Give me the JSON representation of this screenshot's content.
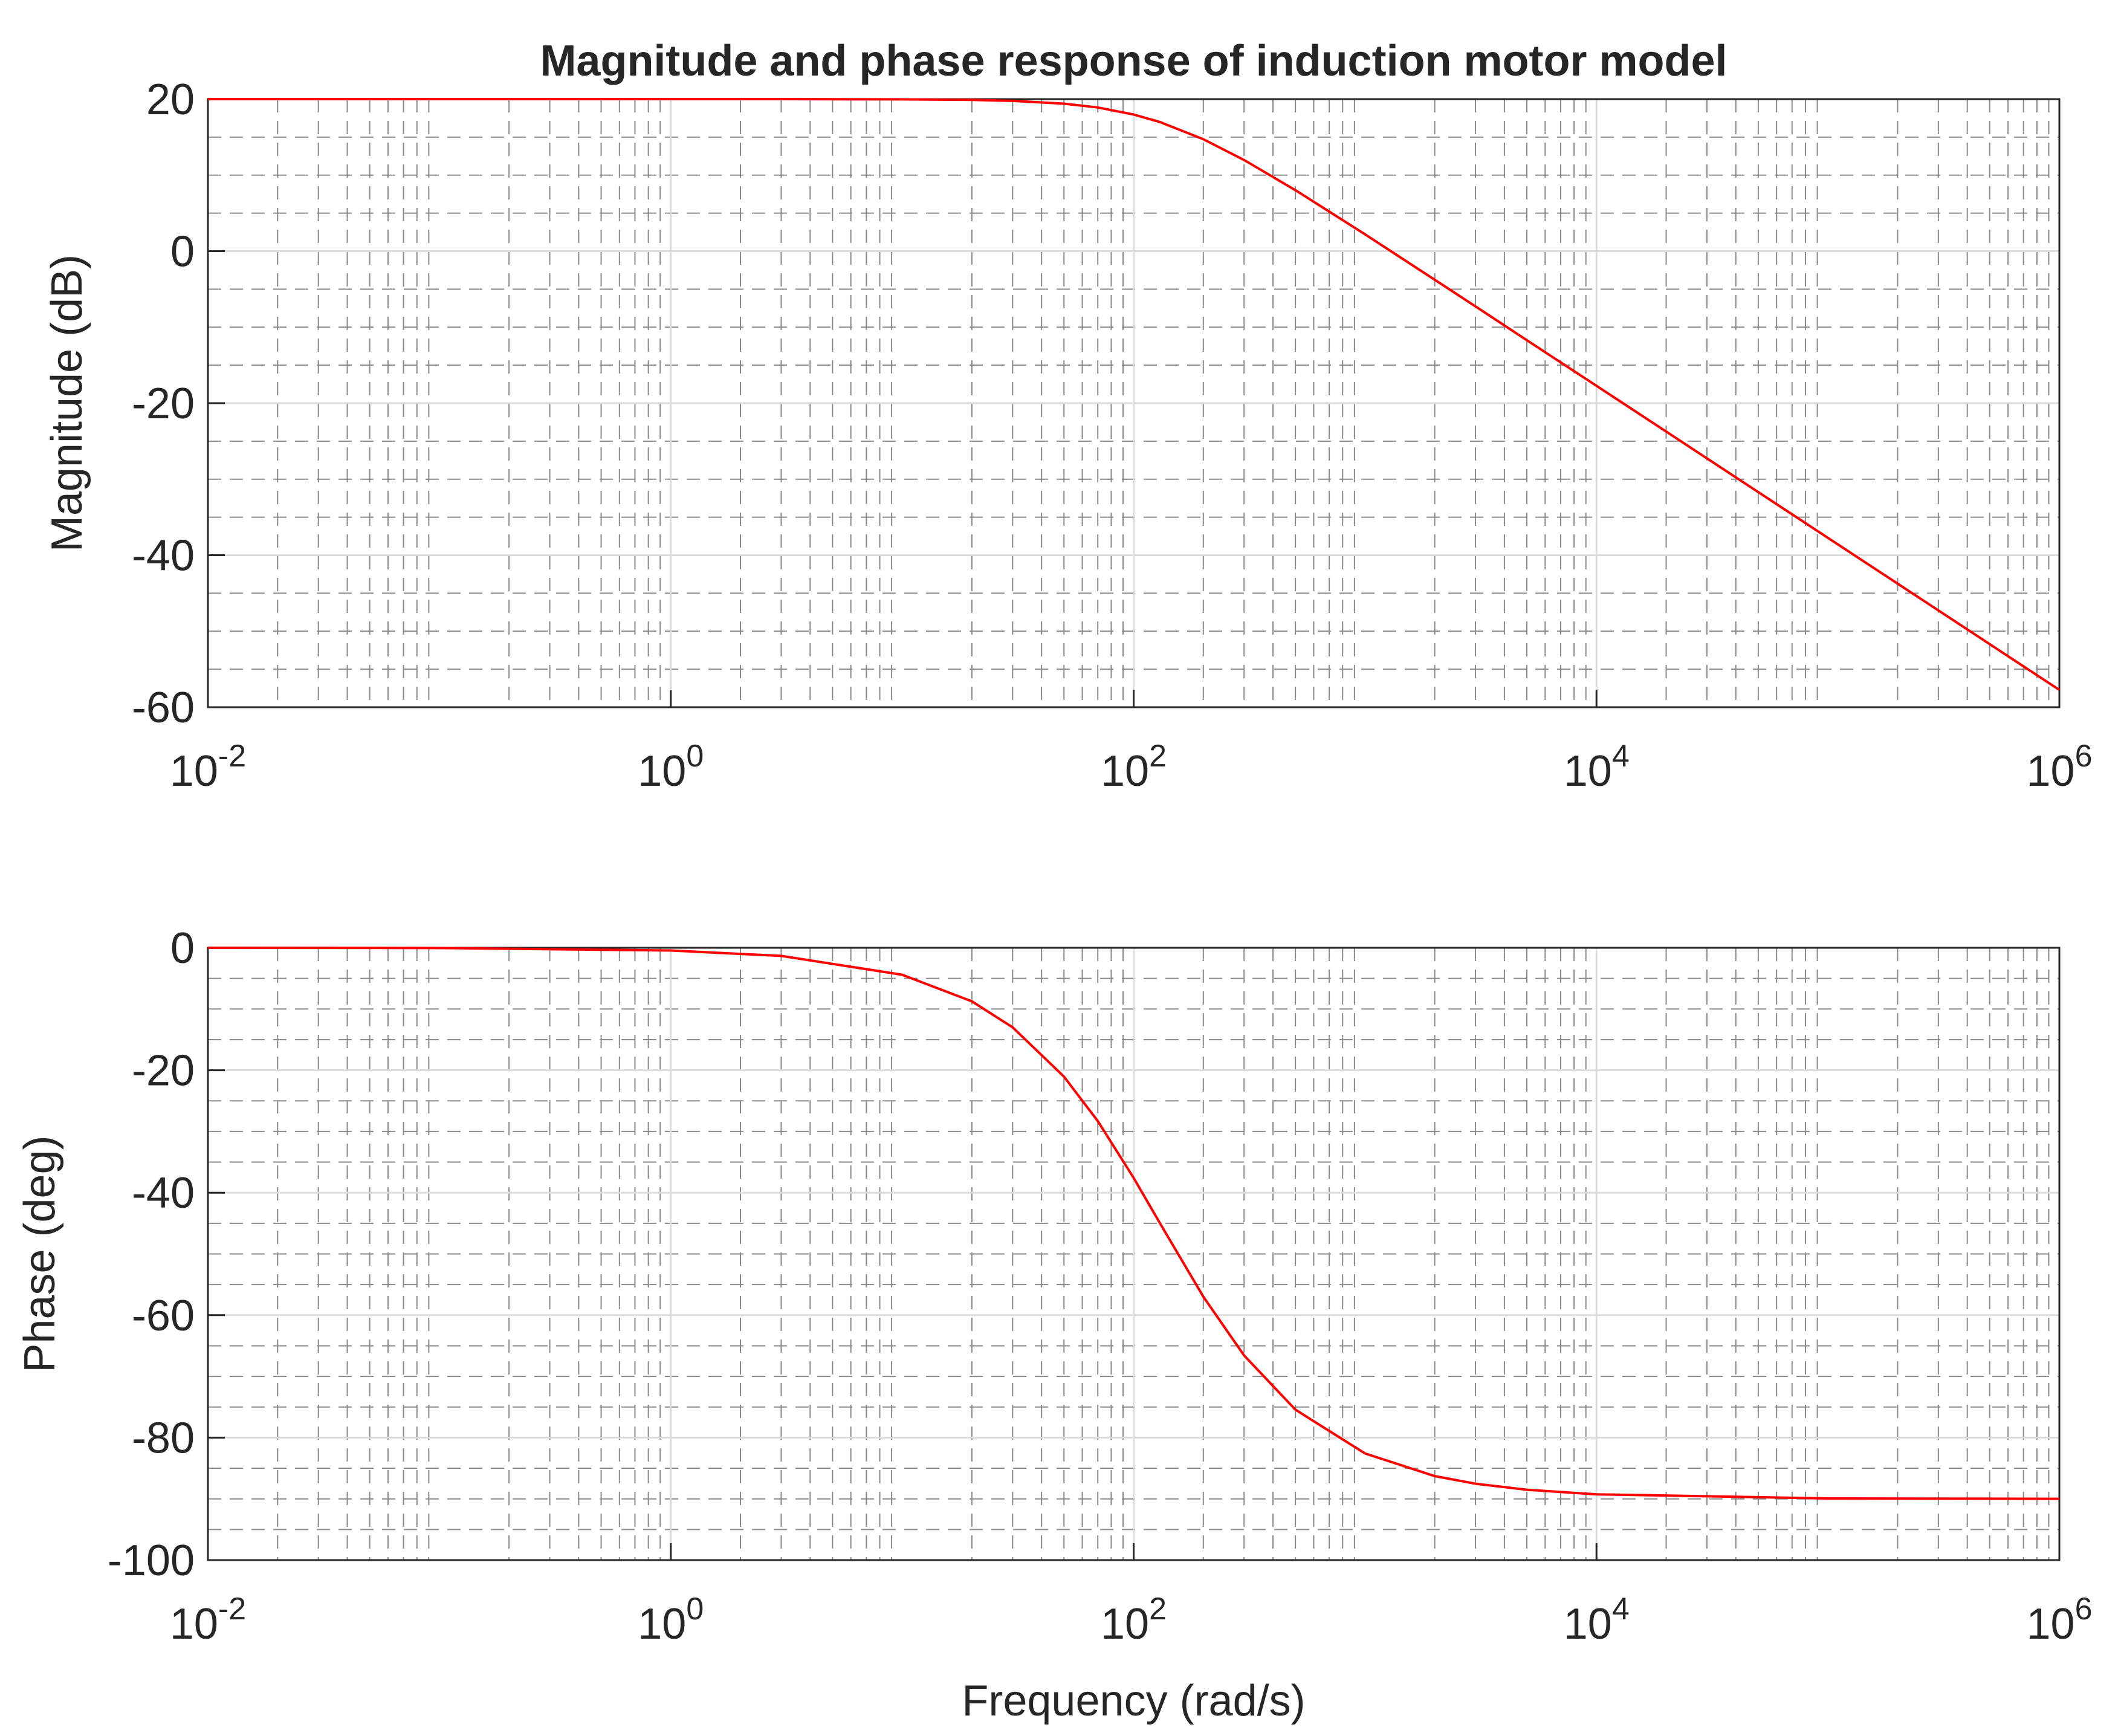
{
  "chart_data": [
    {
      "type": "line",
      "title": "Magnitude and phase response of induction motor model",
      "y_label": "Magnitude (dB)",
      "log_x": true,
      "grid": true,
      "minor_grid": true,
      "x": [
        0.01,
        0.1,
        1,
        3,
        10,
        20,
        30,
        50,
        70,
        100,
        130,
        200,
        300,
        500,
        1000,
        2000,
        3000,
        5000,
        10000,
        100000,
        1000000
      ],
      "series": [
        {
          "name": "Magnitude",
          "color": "#ff0000",
          "values": [
            20,
            20,
            20,
            20,
            19.97,
            19.9,
            19.77,
            19.4,
            18.9,
            17.98,
            16.99,
            14.73,
            11.99,
            8.02,
            2.21,
            -3.76,
            -7.27,
            -11.71,
            -17.72,
            -37.72,
            -57.72
          ]
        }
      ],
      "xlim": [
        0.01,
        1000000
      ],
      "xticks": [
        {
          "value": 0.01,
          "label": "10^-2"
        },
        {
          "value": 1,
          "label": "10^0"
        },
        {
          "value": 100,
          "label": "10^2"
        },
        {
          "value": 10000,
          "label": "10^4"
        },
        {
          "value": 1000000,
          "label": "10^6"
        }
      ],
      "ylim": [
        -60,
        20
      ],
      "yticks": [
        -60,
        -40,
        -20,
        0,
        20
      ]
    },
    {
      "type": "line",
      "x_label": "Frequency (rad/s)",
      "y_label": "Phase (deg)",
      "log_x": true,
      "grid": true,
      "minor_grid": true,
      "x": [
        0.01,
        0.1,
        1,
        3,
        10,
        20,
        30,
        50,
        70,
        100,
        130,
        200,
        300,
        500,
        1000,
        2000,
        3000,
        5000,
        10000,
        100000,
        1000000
      ],
      "series": [
        {
          "name": "Phase",
          "color": "#ff0000",
          "values": [
            0,
            -0.04,
            -0.44,
            -1.32,
            -4.4,
            -8.75,
            -12.99,
            -21.04,
            -28.3,
            -37.57,
            -45,
            -56.98,
            -66.57,
            -75.43,
            -82.59,
            -86.28,
            -87.52,
            -88.51,
            -89.26,
            -89.93,
            -89.99
          ]
        }
      ],
      "xlim": [
        0.01,
        1000000
      ],
      "xticks": [
        {
          "value": 0.01,
          "label": "10^-2"
        },
        {
          "value": 1,
          "label": "10^0"
        },
        {
          "value": 100,
          "label": "10^2"
        },
        {
          "value": 10000,
          "label": "10^4"
        },
        {
          "value": 1000000,
          "label": "10^6"
        }
      ],
      "ylim": [
        -100,
        0
      ],
      "yticks": [
        -100,
        -80,
        -60,
        -40,
        -20,
        0
      ]
    }
  ]
}
